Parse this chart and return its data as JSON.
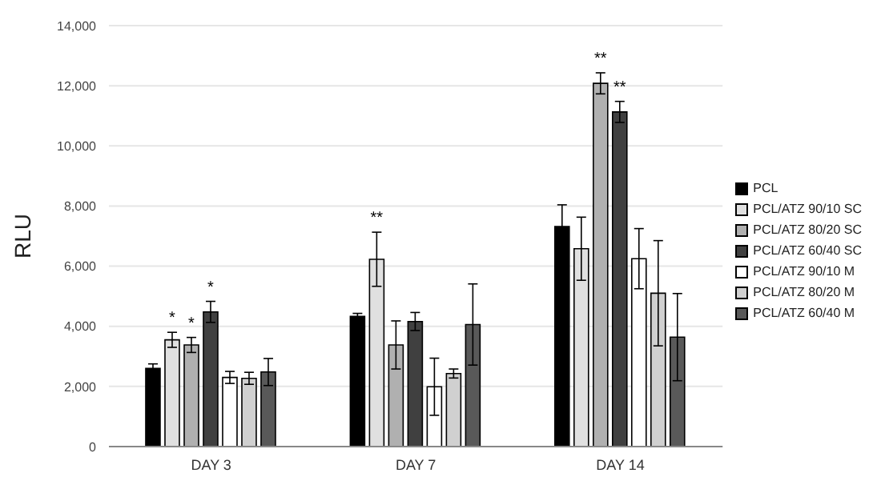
{
  "chart_data": {
    "type": "bar",
    "ylabel": "RLU",
    "categories": [
      "DAY 3",
      "DAY 7",
      "DAY 14"
    ],
    "series": [
      {
        "name": "PCL",
        "color": "#000000",
        "values": [
          2600,
          4330,
          7320
        ],
        "errors": [
          150,
          100,
          720
        ]
      },
      {
        "name": "PCL/ATZ 90/10 SC",
        "color": "#e0e0e0",
        "values": [
          3550,
          6230,
          6580
        ],
        "errors": [
          250,
          900,
          1050
        ],
        "value_labels": [
          "*",
          "**",
          null
        ]
      },
      {
        "name": "PCL/ATZ 80/20 SC",
        "color": "#b0b0b0",
        "values": [
          3380,
          3380,
          12080
        ],
        "errors": [
          250,
          800,
          350
        ],
        "value_labels": [
          "*",
          null,
          "**"
        ]
      },
      {
        "name": "PCL/ATZ 60/40 SC",
        "color": "#404040",
        "values": [
          4480,
          4160,
          11130
        ],
        "errors": [
          350,
          300,
          350
        ],
        "value_labels": [
          "*",
          null,
          "**"
        ]
      },
      {
        "name": "PCL/ATZ 90/10 M",
        "color": "#ffffff",
        "values": [
          2300,
          1990,
          6250
        ],
        "errors": [
          200,
          950,
          1000
        ]
      },
      {
        "name": "PCL/ATZ 80/20 M",
        "color": "#d0d0d0",
        "values": [
          2270,
          2430,
          5100
        ],
        "errors": [
          200,
          150,
          1750
        ]
      },
      {
        "name": "PCL/ATZ 60/40 M",
        "color": "#595959",
        "values": [
          2480,
          4060,
          3640
        ],
        "errors": [
          450,
          1350,
          1450
        ]
      }
    ],
    "ylim": [
      0,
      14000
    ],
    "yticks": [
      0,
      {
        "value": 2000,
        "label": "2,000"
      },
      {
        "value": 4000,
        "label": "4,000"
      },
      {
        "value": 6000,
        "label": "6,000"
      },
      {
        "value": 8000,
        "label": "8,000"
      },
      {
        "value": 10000,
        "label": "10,000"
      },
      {
        "value": 12000,
        "label": "12,000"
      },
      {
        "value": 14000,
        "label": "14,000"
      }
    ],
    "grid": "y",
    "legend": "right"
  }
}
